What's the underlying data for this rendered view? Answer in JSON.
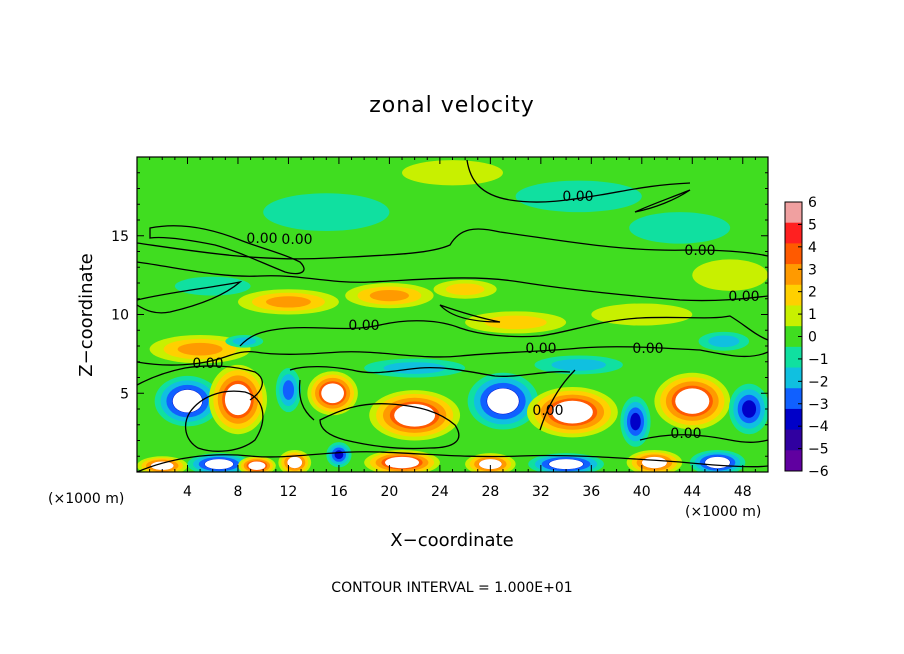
{
  "chart_data": {
    "type": "heatmap",
    "title": "zonal velocity",
    "xlabel": "X−coordinate",
    "ylabel": "Z−coordinate",
    "x_unit": "(×1000 m)",
    "y_unit": "(×1000 m)",
    "xlim": [
      0,
      50
    ],
    "ylim": [
      0,
      20
    ],
    "x_ticks": [
      4,
      8,
      12,
      16,
      20,
      24,
      28,
      32,
      36,
      40,
      44,
      48
    ],
    "y_ticks": [
      5,
      10,
      15
    ],
    "colorbar": {
      "range": [
        -6,
        6
      ],
      "ticks": [
        6,
        5,
        4,
        3,
        2,
        1,
        0,
        -1,
        -2,
        -3,
        -4,
        -5,
        -6
      ],
      "tick_labels": [
        "6",
        "5",
        "4",
        "3",
        "2",
        "1",
        "0",
        "−1",
        "−2",
        "−3",
        "−4",
        "−5",
        "−6"
      ],
      "colors": [
        "#f0a0a0",
        "#ff2020",
        "#ff5a00",
        "#ff9a00",
        "#ffd000",
        "#c8f000",
        "#40dd20",
        "#10e0a0",
        "#10c0e0",
        "#1060ff",
        "#0000c8",
        "#3000a0",
        "#6000a0"
      ]
    },
    "contour_labels": [
      "0.00",
      "0.00",
      "0.00",
      "0.00",
      "0.00",
      "0.00",
      "0.00",
      "0.00",
      "0.00",
      "0.00",
      "0.00"
    ],
    "note": "CONTOUR INTERVAL = 1.000E+01",
    "field_blobs": [
      {
        "x": 4,
        "z": 4.5,
        "rx": 2.6,
        "rz": 1.6,
        "v": -5
      },
      {
        "x": 8,
        "z": 4.6,
        "rx": 2.3,
        "rz": 2.2,
        "v": 6
      },
      {
        "x": 12,
        "z": 5.2,
        "rx": 1.0,
        "rz": 1.4,
        "v": -3
      },
      {
        "x": 15.5,
        "z": 5.0,
        "rx": 2.0,
        "rz": 1.4,
        "v": 6
      },
      {
        "x": 22,
        "z": 3.6,
        "rx": 3.6,
        "rz": 1.6,
        "v": 6
      },
      {
        "x": 29,
        "z": 4.5,
        "rx": 2.8,
        "rz": 1.8,
        "v": -5
      },
      {
        "x": 34.5,
        "z": 3.8,
        "rx": 3.6,
        "rz": 1.6,
        "v": 6
      },
      {
        "x": 39.5,
        "z": 3.2,
        "rx": 1.2,
        "rz": 1.6,
        "v": -4
      },
      {
        "x": 44,
        "z": 4.5,
        "rx": 3.0,
        "rz": 1.8,
        "v": 6
      },
      {
        "x": 48.5,
        "z": 4.0,
        "rx": 1.6,
        "rz": 1.6,
        "v": -4
      },
      {
        "x": 2,
        "z": 0.4,
        "rx": 2.0,
        "rz": 0.6,
        "v": 5
      },
      {
        "x": 6.5,
        "z": 0.5,
        "rx": 2.5,
        "rz": 0.7,
        "v": -5
      },
      {
        "x": 9.5,
        "z": 0.4,
        "rx": 1.5,
        "rz": 0.6,
        "v": 6
      },
      {
        "x": 12.5,
        "z": 0.6,
        "rx": 1.3,
        "rz": 0.8,
        "v": 5
      },
      {
        "x": 16,
        "z": 1.1,
        "rx": 1.0,
        "rz": 0.8,
        "v": -4
      },
      {
        "x": 21,
        "z": 0.6,
        "rx": 3.0,
        "rz": 0.8,
        "v": 6
      },
      {
        "x": 28,
        "z": 0.5,
        "rx": 2.0,
        "rz": 0.7,
        "v": 5
      },
      {
        "x": 34,
        "z": 0.5,
        "rx": 3.0,
        "rz": 0.7,
        "v": -5
      },
      {
        "x": 41,
        "z": 0.6,
        "rx": 2.2,
        "rz": 0.8,
        "v": 5
      },
      {
        "x": 46,
        "z": 0.6,
        "rx": 2.2,
        "rz": 0.8,
        "v": -5
      },
      {
        "x": 5,
        "z": 7.8,
        "rx": 4.0,
        "rz": 0.9,
        "v": 3
      },
      {
        "x": 12,
        "z": 10.8,
        "rx": 4.0,
        "rz": 0.8,
        "v": 3
      },
      {
        "x": 20,
        "z": 11.2,
        "rx": 3.5,
        "rz": 0.8,
        "v": 3
      },
      {
        "x": 26,
        "z": 11.6,
        "rx": 2.5,
        "rz": 0.6,
        "v": 2
      },
      {
        "x": 22,
        "z": 6.6,
        "rx": 4.0,
        "rz": 0.6,
        "v": -2
      },
      {
        "x": 35,
        "z": 6.8,
        "rx": 3.5,
        "rz": 0.6,
        "v": -2
      },
      {
        "x": 46.5,
        "z": 8.3,
        "rx": 2.0,
        "rz": 0.6,
        "v": -2
      },
      {
        "x": 8.5,
        "z": 8.3,
        "rx": 1.5,
        "rz": 0.4,
        "v": -2
      },
      {
        "x": 30,
        "z": 9.5,
        "rx": 4.0,
        "rz": 0.7,
        "v": 2
      },
      {
        "x": 40,
        "z": 10.0,
        "rx": 4.0,
        "rz": 0.7,
        "v": 1
      },
      {
        "x": 15,
        "z": 16.5,
        "rx": 5.0,
        "rz": 1.2,
        "v": -1
      },
      {
        "x": 35,
        "z": 17.5,
        "rx": 5.0,
        "rz": 1.0,
        "v": -1
      },
      {
        "x": 43,
        "z": 15.5,
        "rx": 4.0,
        "rz": 1.0,
        "v": -1
      },
      {
        "x": 25,
        "z": 19.0,
        "rx": 4.0,
        "rz": 0.8,
        "v": 1
      },
      {
        "x": 47,
        "z": 12.5,
        "rx": 3.0,
        "rz": 1.0,
        "v": 1
      },
      {
        "x": 6,
        "z": 11.8,
        "rx": 3.0,
        "rz": 0.6,
        "v": -1
      }
    ]
  }
}
